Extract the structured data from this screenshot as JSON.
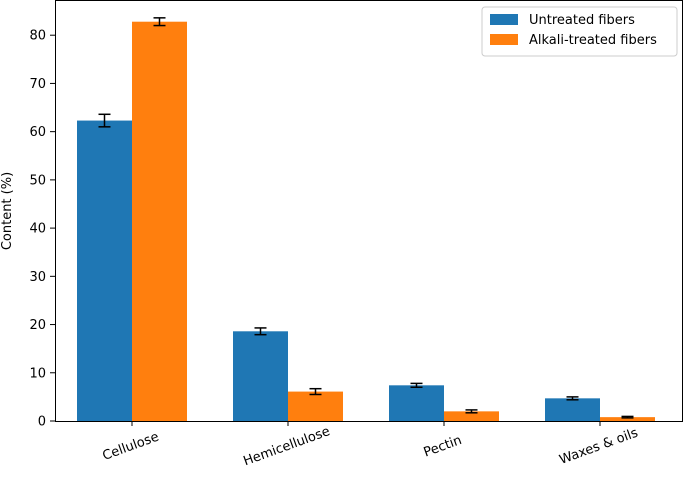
{
  "chart_data": {
    "type": "bar",
    "title": "",
    "xlabel": "",
    "ylabel": "Content (%)",
    "ylim": [
      0,
      87.3
    ],
    "yticks": [
      0,
      10,
      20,
      30,
      40,
      50,
      60,
      70,
      80
    ],
    "categories": [
      "Cellulose",
      "Hemicellulose",
      "Pectin",
      "Waxes & oils"
    ],
    "series": [
      {
        "name": "Untreated fibers",
        "color": "#1f77b4",
        "values": [
          62.3,
          18.6,
          7.4,
          4.7
        ],
        "errors": [
          1.3,
          0.7,
          0.4,
          0.3
        ]
      },
      {
        "name": "Alkali-treated fibers",
        "color": "#ff7f0e",
        "values": [
          82.8,
          6.1,
          2.0,
          0.8
        ],
        "errors": [
          0.8,
          0.6,
          0.3,
          0.15
        ]
      }
    ],
    "legend": "top-right",
    "grid": false,
    "xtick_rotation": -20
  }
}
